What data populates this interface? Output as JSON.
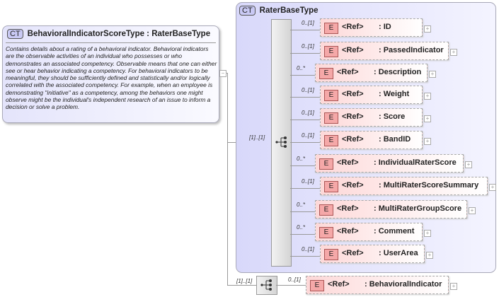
{
  "type_box": {
    "badge": "CT",
    "title": "BehavioralIndicatorScoreType : RaterBaseType",
    "documentation": "Contains details about a rating of a behavioral indicator. Behavioral indicators are the observable activities of an individual who possesses or who demonstrates an associated competency. Observable means that one can either see or hear behavior indicating a competency. For behavioral indicators to be meaningful, they should be sufficiently defined and statistically and/or logically correlated with the associated competency. For example, when an employee is demonstrating \"initiative\" as a competency, among the behaviors one might observe might be the individual's independent research of an issue to inform a decision or solve a problem.",
    "collapse_symbol": "−"
  },
  "base_type": {
    "badge": "CT",
    "title": "RaterBaseType",
    "sequence_cardinality": "[1]..[1]",
    "elements": [
      {
        "badge": "E",
        "ref": "<Ref>",
        "name": ": ID",
        "cardinality": "0..[1]"
      },
      {
        "badge": "E",
        "ref": "<Ref>",
        "name": ": PassedIndicator",
        "cardinality": "0..[1]"
      },
      {
        "badge": "E",
        "ref": "<Ref>",
        "name": ": Description",
        "cardinality": "0..*"
      },
      {
        "badge": "E",
        "ref": "<Ref>",
        "name": ": Weight",
        "cardinality": "0..[1]"
      },
      {
        "badge": "E",
        "ref": "<Ref>",
        "name": ": Score",
        "cardinality": "0..[1]"
      },
      {
        "badge": "E",
        "ref": "<Ref>",
        "name": ": BandID",
        "cardinality": "0..[1]"
      },
      {
        "badge": "E",
        "ref": "<Ref>",
        "name": ": IndividualRaterScore",
        "cardinality": "0..*"
      },
      {
        "badge": "E",
        "ref": "<Ref>",
        "name": ": MultiRaterScoreSummary",
        "cardinality": "0..[1]"
      },
      {
        "badge": "E",
        "ref": "<Ref>",
        "name": ": MultiRaterGroupScore",
        "cardinality": "0..*"
      },
      {
        "badge": "E",
        "ref": "<Ref>",
        "name": ": Comment",
        "cardinality": "0..*"
      },
      {
        "badge": "E",
        "ref": "<Ref>",
        "name": ": UserArea",
        "cardinality": "0..[1]"
      }
    ]
  },
  "extension": {
    "sequence_cardinality": "[1]..[1]",
    "element": {
      "badge": "E",
      "ref": "<Ref>",
      "name": ": BehavioralIndicator",
      "cardinality": "0..[1]"
    }
  },
  "expand_symbol": "+"
}
